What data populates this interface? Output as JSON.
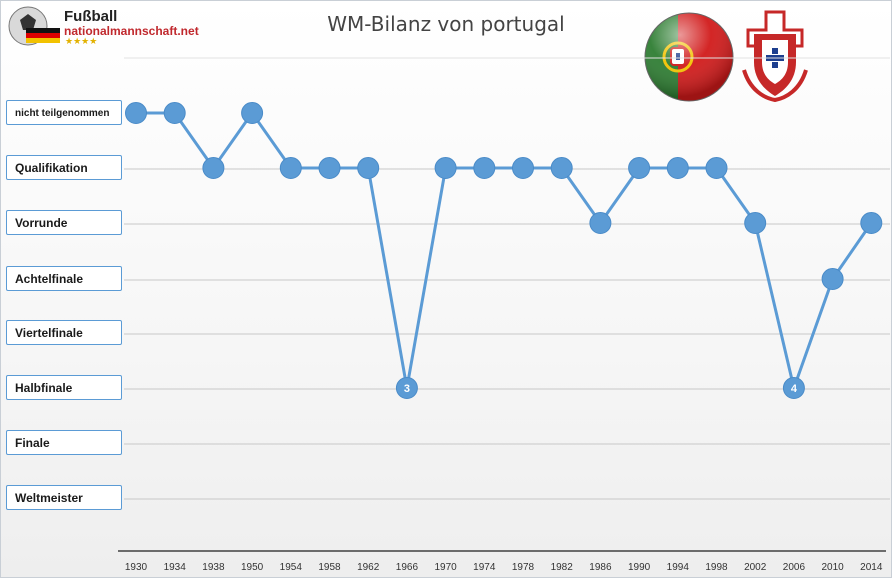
{
  "logo": {
    "line1": "Fußball",
    "line2": "nationalmannschaft.net",
    "stars": "★★★★"
  },
  "colors": {
    "series": "#5b9bd5",
    "grid": "#c8c8c8",
    "axis": "#404040",
    "flag_green": "#2e7d32",
    "flag_red": "#d11a1a"
  },
  "chart_data": {
    "type": "line",
    "title": "WM-Bilanz von portugal",
    "xlabel": "",
    "ylabel": "",
    "categories": [
      "nicht teilgenommen",
      "Qualifikation",
      "Vorrunde",
      "Achtelfinale",
      "Viertelfinale",
      "Halbfinale",
      "Finale",
      "Weltmeister"
    ],
    "x": [
      "1930",
      "1934",
      "1938",
      "1950",
      "1954",
      "1958",
      "1962",
      "1966",
      "1970",
      "1974",
      "1978",
      "1982",
      "1986",
      "1990",
      "1994",
      "1998",
      "2002",
      "2006",
      "2010",
      "2014"
    ],
    "values": [
      "nicht teilgenommen",
      "nicht teilgenommen",
      "Qualifikation",
      "nicht teilgenommen",
      "Qualifikation",
      "Qualifikation",
      "Qualifikation",
      "Halbfinale",
      "Qualifikation",
      "Qualifikation",
      "Qualifikation",
      "Qualifikation",
      "Vorrunde",
      "Qualifikation",
      "Qualifikation",
      "Qualifikation",
      "Vorrunde",
      "Halbfinale",
      "Achtelfinale",
      "Vorrunde"
    ],
    "point_labels": [
      "",
      "",
      "",
      "",
      "",
      "",
      "",
      "3",
      "",
      "",
      "",
      "",
      "",
      "",
      "",
      "",
      "",
      "4",
      "",
      ""
    ],
    "grid": true,
    "legend": "none"
  }
}
